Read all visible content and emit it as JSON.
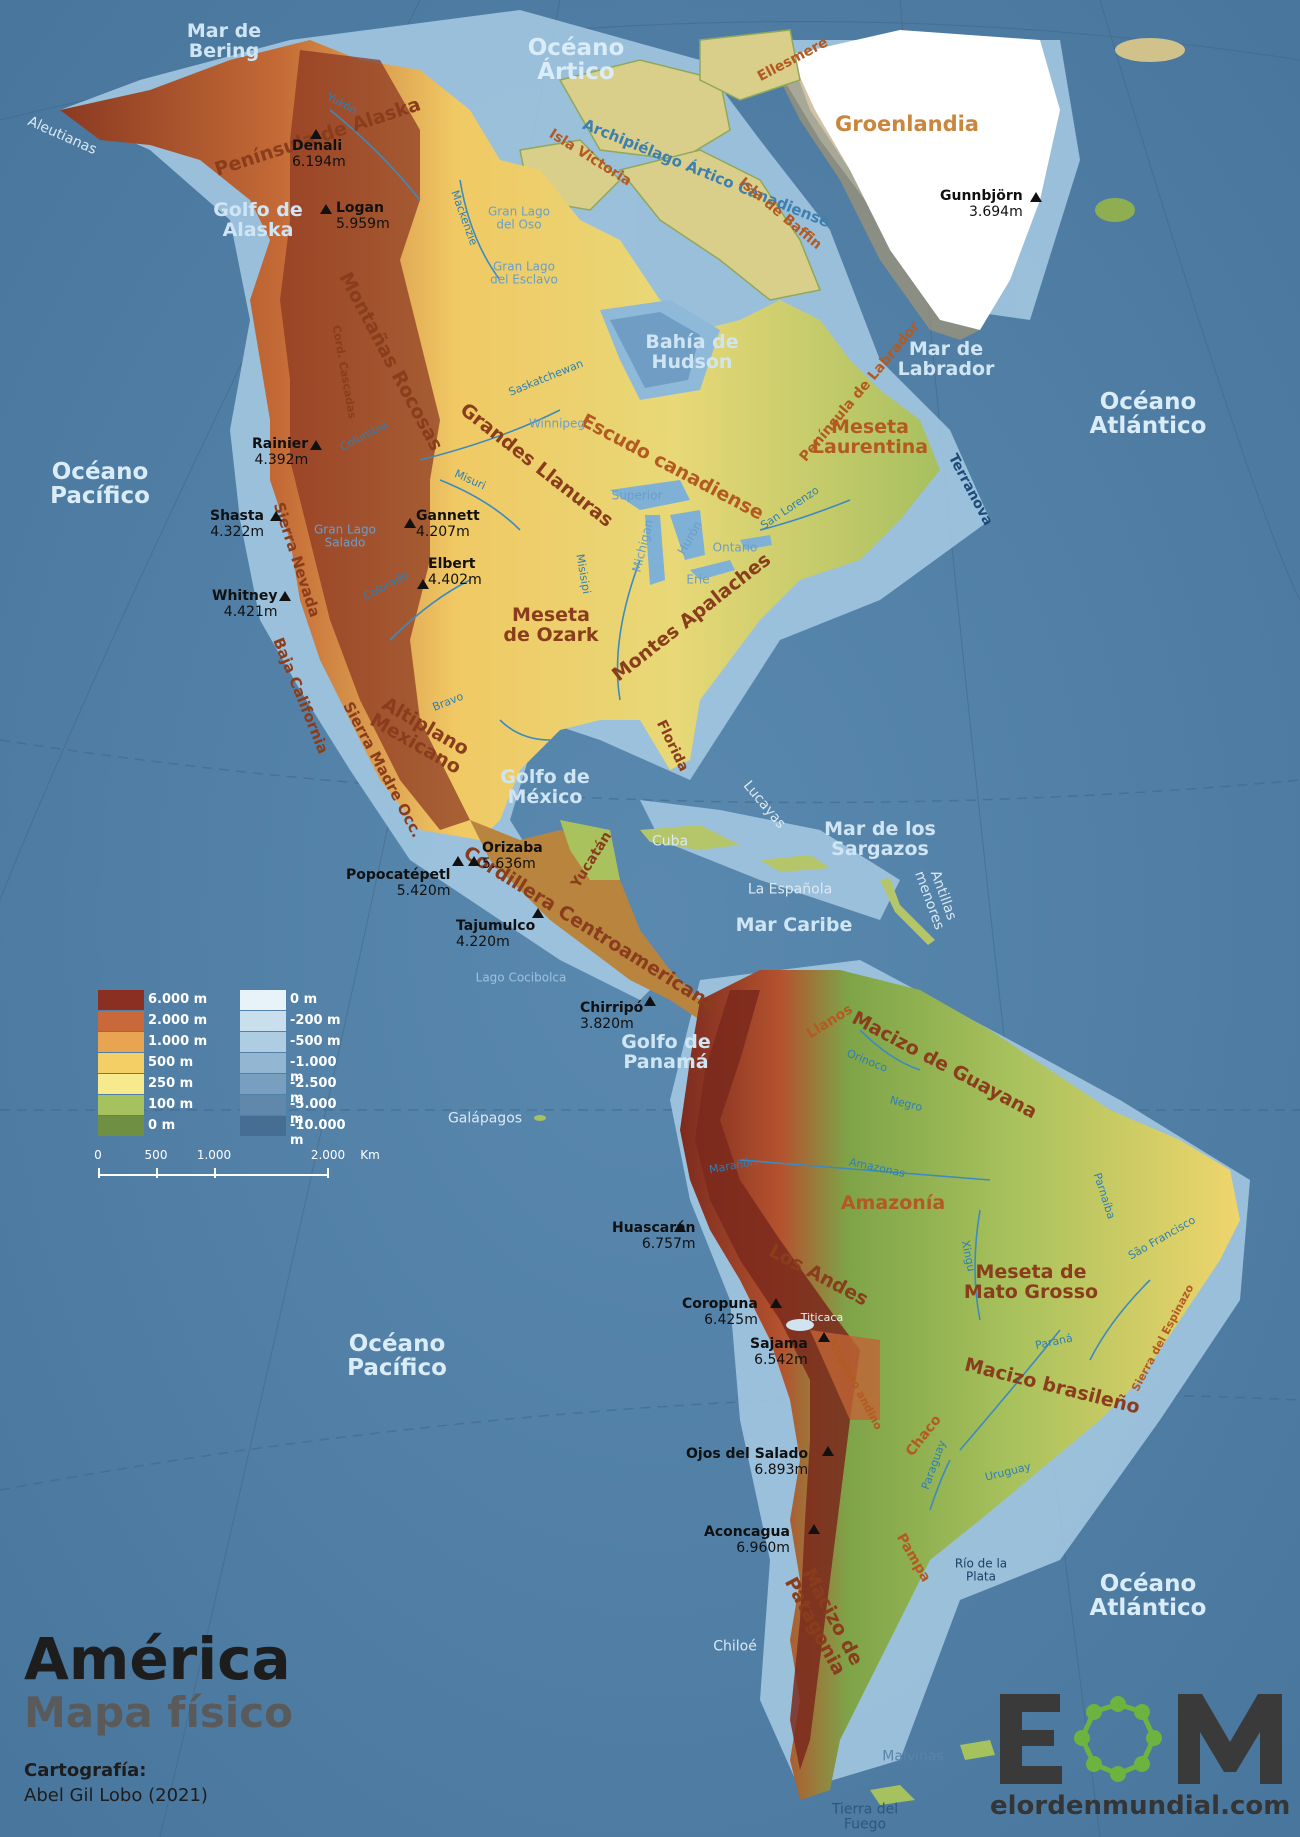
{
  "title": {
    "main": "América",
    "sub": "Mapa físico"
  },
  "credits": {
    "label": "Cartografía:",
    "value": "Abel Gil Lobo (2021)"
  },
  "logo": {
    "letters": "EOM",
    "url": "elordenmundial.com",
    "colors": {
      "dark": "#3a3a3a",
      "green": "#6cb33f"
    }
  },
  "colors": {
    "ocean": "#4f7fa6",
    "shelf": "#a9cde6",
    "land_low": "#8fae52",
    "land_mid": "#e9c660",
    "land_high": "#7e2f1e",
    "ice": "#ffffff"
  },
  "legend": {
    "elevation": [
      {
        "label": "6.000 m",
        "color": "#8a2f22"
      },
      {
        "label": "2.000 m",
        "color": "#c9683a"
      },
      {
        "label": "1.000 m",
        "color": "#e9a451"
      },
      {
        "label": "500 m",
        "color": "#f3cf66"
      },
      {
        "label": "250 m",
        "color": "#f6ea8c"
      },
      {
        "label": "100 m",
        "color": "#a6c25e"
      },
      {
        "label": "0 m",
        "color": "#6f8f43"
      }
    ],
    "depth": [
      {
        "label": "0 m",
        "color": "#e7f2f9"
      },
      {
        "label": "-200 m",
        "color": "#c9dfee"
      },
      {
        "label": "-500 m",
        "color": "#aecde3"
      },
      {
        "label": "-1.000 m",
        "color": "#93b7d3"
      },
      {
        "label": "-2.500 m",
        "color": "#789fc0"
      },
      {
        "label": "-5.000 m",
        "color": "#5f88ab"
      },
      {
        "label": "-10.000 m",
        "color": "#456e92"
      }
    ]
  },
  "scale": {
    "ticks": [
      "0",
      "500",
      "1.000",
      "2.000"
    ],
    "unit": "Km"
  },
  "oceans": [
    {
      "name": "Océano\nÁrtico"
    },
    {
      "name": "Océano\nPacífico"
    },
    {
      "name": "Océano\nAtlántico"
    },
    {
      "name": "Océano\nPacífico"
    },
    {
      "name": "Océano\nAtlántico"
    }
  ],
  "seas": [
    {
      "name": "Mar de\nBering"
    },
    {
      "name": "Golfo de\nAlaska"
    },
    {
      "name": "Bahía de\nHudson"
    },
    {
      "name": "Mar de\nLabrador"
    },
    {
      "name": "Golfo de\nMéxico"
    },
    {
      "name": "Mar de los\nSargazos"
    },
    {
      "name": "Mar Caribe"
    },
    {
      "name": "Golfo de\nPanamá"
    }
  ],
  "regions": [
    {
      "name": "Península de Alaska"
    },
    {
      "name": "Montañas Rocosas"
    },
    {
      "name": "Grandes Llanuras"
    },
    {
      "name": "Escudo canadiense"
    },
    {
      "name": "Meseta\nLaurentina"
    },
    {
      "name": "Montes Apalaches"
    },
    {
      "name": "Meseta\nde Ozark"
    },
    {
      "name": "Altiplano\nMexicano"
    },
    {
      "name": "Cordillera Centroamericana"
    },
    {
      "name": "Macizo de Guayana"
    },
    {
      "name": "Amazonía"
    },
    {
      "name": "Los Andes"
    },
    {
      "name": "Meseta de\nMato Grosso"
    },
    {
      "name": "Macizo brasileño"
    },
    {
      "name": "Macizo de\nPatagonia"
    },
    {
      "name": "Sierra Nevada"
    },
    {
      "name": "Baja California"
    },
    {
      "name": "Sierra Madre Occ."
    },
    {
      "name": "Península de Labrador"
    },
    {
      "name": "Archipiélago Ártico Canadiense"
    },
    {
      "name": "Isla Victoria"
    },
    {
      "name": "Isla de Baffin"
    },
    {
      "name": "Ellesmere"
    },
    {
      "name": "Terranova"
    },
    {
      "name": "Florida"
    },
    {
      "name": "Yucatán"
    },
    {
      "name": "Llanos"
    },
    {
      "name": "Chaco"
    },
    {
      "name": "Pampa"
    },
    {
      "name": "Altiplano andino"
    },
    {
      "name": "Cord. Cascadas"
    },
    {
      "name": "Sierra del Espinazo"
    }
  ],
  "rivers": [
    {
      "name": "Yukón"
    },
    {
      "name": "Mackenzie"
    },
    {
      "name": "Saskatchewan"
    },
    {
      "name": "Misuri"
    },
    {
      "name": "Misisipi"
    },
    {
      "name": "Colorado"
    },
    {
      "name": "Bravo"
    },
    {
      "name": "Columbia"
    },
    {
      "name": "San Lorenzo"
    },
    {
      "name": "Orinoco"
    },
    {
      "name": "Negro"
    },
    {
      "name": "Amazonas"
    },
    {
      "name": "Marañón"
    },
    {
      "name": "Xingu"
    },
    {
      "name": "Paraná"
    },
    {
      "name": "São Francisco"
    },
    {
      "name": "Parnaíba"
    },
    {
      "name": "Paraguay"
    },
    {
      "name": "Uruguay"
    }
  ],
  "lakes": [
    {
      "name": "Gran Lago\ndel Oso"
    },
    {
      "name": "Gran Lago\ndel Esclavo"
    },
    {
      "name": "Winnipeg"
    },
    {
      "name": "Superior"
    },
    {
      "name": "Michigan"
    },
    {
      "name": "Hurón"
    },
    {
      "name": "Erie"
    },
    {
      "name": "Ontario"
    },
    {
      "name": "Gran Lago\nSalado"
    },
    {
      "name": "Lago Cocibolca"
    },
    {
      "name": "Titicaca"
    },
    {
      "name": "Río de la\nPlata"
    }
  ],
  "islands": [
    {
      "name": "Aleutianas"
    },
    {
      "name": "Cuba"
    },
    {
      "name": "La Española"
    },
    {
      "name": "Lucayas"
    },
    {
      "name": "Antillas\nmenores"
    },
    {
      "name": "Galápagos"
    },
    {
      "name": "Chiloé"
    },
    {
      "name": "Malvinas"
    },
    {
      "name": "Tierra del\nFuego"
    }
  ],
  "greenland": {
    "name": "Groenlandia"
  },
  "peaks": [
    {
      "name": "Denali",
      "elev": "6.194m"
    },
    {
      "name": "Logan",
      "elev": "5.959m"
    },
    {
      "name": "Rainier",
      "elev": "4.392m"
    },
    {
      "name": "Shasta",
      "elev": "4.322m"
    },
    {
      "name": "Gannett",
      "elev": "4.207m"
    },
    {
      "name": "Elbert",
      "elev": "4.402m"
    },
    {
      "name": "Whitney",
      "elev": "4.421m"
    },
    {
      "name": "Orizaba",
      "elev": "5.636m"
    },
    {
      "name": "Popocatépetl",
      "elev": "5.420m"
    },
    {
      "name": "Tajumulco",
      "elev": "4.220m"
    },
    {
      "name": "Chirripó",
      "elev": "3.820m"
    },
    {
      "name": "Gunnbjörn",
      "elev": "3.694m"
    },
    {
      "name": "Huascarán",
      "elev": "6.757m"
    },
    {
      "name": "Coropuna",
      "elev": "6.425m"
    },
    {
      "name": "Sajama",
      "elev": "6.542m"
    },
    {
      "name": "Ojos del Salado",
      "elev": "6.893m"
    },
    {
      "name": "Aconcagua",
      "elev": "6.960m"
    }
  ]
}
